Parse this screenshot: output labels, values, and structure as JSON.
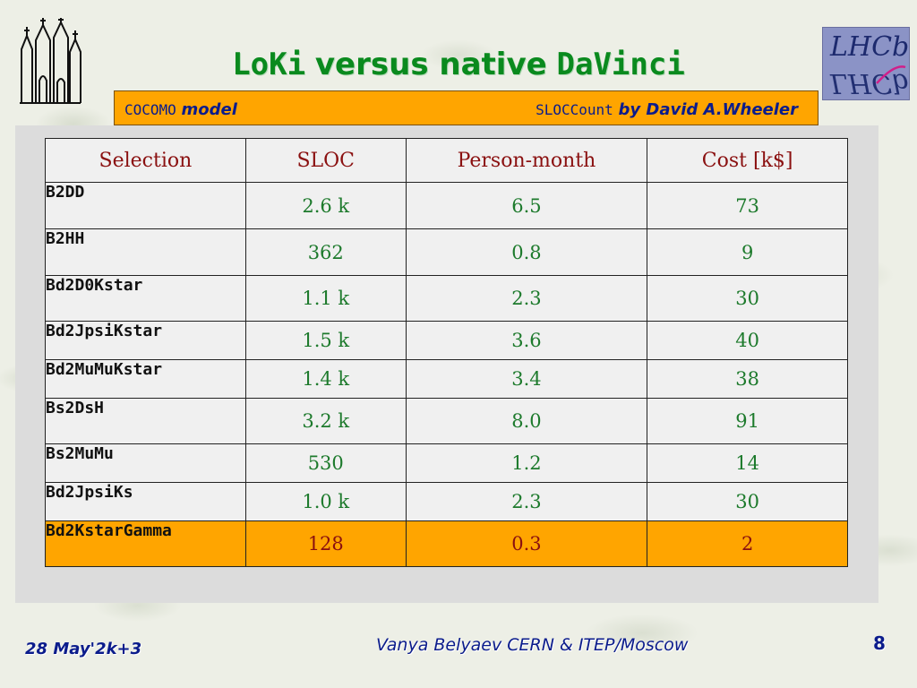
{
  "slide": {
    "title": {
      "part1": "LoKi",
      "part2": "versus native",
      "part3": "DaVinci"
    },
    "banner": {
      "cocomo_mono": "COCOMO",
      "cocomo_text": "model",
      "sloc_mono": "SLOCCount",
      "sloc_text": "by David A.Wheeler"
    },
    "logo_right": {
      "text": "LHCb"
    },
    "table": {
      "headers": [
        "Selection",
        "SLOC",
        "Person-month",
        "Cost  [k$]"
      ],
      "rows": [
        {
          "selection": "B2DD",
          "sloc": "2.6 k",
          "person_month": "6.5",
          "cost": "73",
          "highlight": false
        },
        {
          "selection": "B2HH",
          "sloc": "362",
          "person_month": "0.8",
          "cost": "9",
          "highlight": false
        },
        {
          "selection": "Bd2D0Kstar",
          "sloc": "1.1 k",
          "person_month": "2.3",
          "cost": "30",
          "highlight": false
        },
        {
          "selection": "Bd2JpsiKstar",
          "sloc": "1.5 k",
          "person_month": "3.6",
          "cost": "40",
          "highlight": false
        },
        {
          "selection": "Bd2MuMuKstar",
          "sloc": "1.4 k",
          "person_month": "3.4",
          "cost": "38",
          "highlight": false
        },
        {
          "selection": "Bs2DsH",
          "sloc": "3.2 k",
          "person_month": "8.0",
          "cost": "91",
          "highlight": false
        },
        {
          "selection": "Bs2MuMu",
          "sloc": "530",
          "person_month": "1.2",
          "cost": "14",
          "highlight": false
        },
        {
          "selection": "Bd2JpsiKs",
          "sloc": "1.0 k",
          "person_month": "2.3",
          "cost": "30",
          "highlight": false
        },
        {
          "selection": "Bd2KstarGamma",
          "sloc": "128",
          "person_month": "0.3",
          "cost": "2",
          "highlight": true
        }
      ]
    },
    "footer": {
      "date": "28 May'2k+3",
      "author": "Vanya  Belyaev CERN & ITEP/Moscow",
      "page": "8"
    },
    "colors": {
      "title": "#0a8a1e",
      "banner_bg": "#ffa500",
      "banner_text": "#0b1c8c",
      "header_text": "#8a1010",
      "value_text": "#1d7a2c",
      "highlight_bg": "#ffa500",
      "footer_text": "#0b1c8c"
    }
  }
}
